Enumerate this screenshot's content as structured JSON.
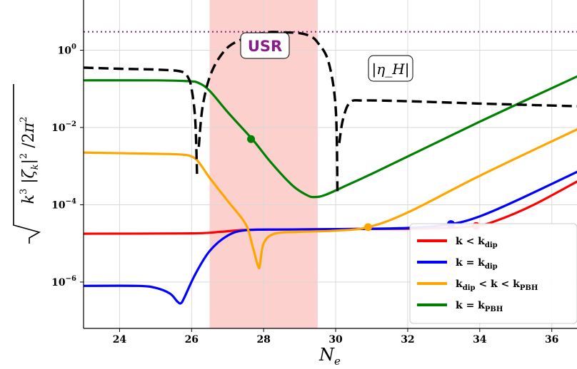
{
  "chart_data": {
    "type": "line",
    "xlabel": "N_e",
    "ylabel": "√(k³ |ζ_k|² / 2π²)",
    "xlim": [
      23.0,
      36.7
    ],
    "ylim_log10": [
      -7.2,
      1.3
    ],
    "yscale": "log",
    "grid": true,
    "x_ticks": [
      24,
      26,
      28,
      30,
      32,
      34,
      36
    ],
    "x_tick_labels": [
      "24",
      "26",
      "28",
      "30",
      "32",
      "34",
      "36"
    ],
    "y_ticks_log10": [
      0,
      -2,
      -4,
      -6
    ],
    "y_tick_labels": [
      {
        "base": "10",
        "exp": "0"
      },
      {
        "base": "10",
        "exp": "−2"
      },
      {
        "base": "10",
        "exp": "−4"
      },
      {
        "base": "10",
        "exp": "−6"
      }
    ],
    "shaded_region": {
      "label": "USR",
      "x": [
        26.5,
        29.5
      ],
      "color": "#fcd0cc",
      "label_color": "#8b1c8b"
    },
    "hline": {
      "y": 3.0,
      "color": "#8b1c8b",
      "style": "dotted"
    },
    "eta_annotation": "|η_H|",
    "eta_curve": {
      "color": "#000000",
      "style": "dashed",
      "segments": [
        {
          "x": [
            23.0,
            24.0,
            25.0,
            25.7,
            25.9,
            26.0,
            26.1,
            26.15
          ],
          "log10y": [
            -0.45,
            -0.48,
            -0.5,
            -0.55,
            -0.7,
            -1.0,
            -1.8,
            -3.2
          ]
        },
        {
          "x": [
            26.2,
            26.3,
            26.5,
            26.8,
            27.2,
            28.0,
            28.6,
            29.0,
            29.3,
            29.5,
            29.8,
            30.0,
            30.05
          ],
          "log10y": [
            -2.5,
            -1.5,
            -0.7,
            -0.15,
            0.2,
            0.45,
            0.46,
            0.44,
            0.36,
            0.2,
            -0.3,
            -1.5,
            -3.7
          ]
        },
        {
          "x": [
            30.1,
            30.2,
            30.4,
            30.8,
            32.0,
            34.0,
            36.7
          ],
          "log10y": [
            -2.4,
            -1.8,
            -1.35,
            -1.3,
            -1.32,
            -1.38,
            -1.45
          ]
        }
      ]
    },
    "series": [
      {
        "name": "k < k_dip",
        "color": "#ff0000",
        "x": [
          23.0,
          26.0,
          26.8,
          27.5,
          28.5,
          30.0,
          32.0,
          33.0,
          33.9,
          34.5,
          35.5,
          36.7
        ],
        "log10y": [
          -4.75,
          -4.74,
          -4.7,
          -4.65,
          -4.64,
          -4.63,
          -4.62,
          -4.6,
          -4.55,
          -4.4,
          -4.0,
          -3.4
        ],
        "marker": {
          "x": 33.9,
          "log10y": -4.55
        }
      },
      {
        "name": "k = k_dip",
        "color": "#0000ff",
        "x": [
          23.0,
          24.5,
          25.0,
          25.4,
          25.6,
          25.7,
          25.8,
          26.1,
          26.5,
          27.0,
          27.5,
          28.5,
          30.0,
          32.0,
          33.2,
          34.0,
          35.0,
          36.7
        ],
        "log10y": [
          -6.1,
          -6.1,
          -6.15,
          -6.3,
          -6.5,
          -6.55,
          -6.4,
          -5.8,
          -5.2,
          -4.8,
          -4.66,
          -4.64,
          -4.63,
          -4.6,
          -4.5,
          -4.3,
          -3.9,
          -3.15
        ],
        "marker": {
          "x": 33.2,
          "log10y": -4.5
        }
      },
      {
        "name": "k_dip < k < k_PBH",
        "color": "#ffa500",
        "x": [
          23.0,
          25.0,
          25.7,
          26.0,
          26.2,
          26.5,
          27.0,
          27.5,
          27.7,
          27.85,
          27.9,
          28.0,
          28.3,
          29.0,
          30.0,
          30.9,
          32.0,
          34.0,
          36.7
        ],
        "log10y": [
          -2.65,
          -2.68,
          -2.7,
          -2.75,
          -2.9,
          -3.3,
          -3.9,
          -4.5,
          -5.1,
          -5.6,
          -5.55,
          -5.0,
          -4.75,
          -4.7,
          -4.67,
          -4.58,
          -4.2,
          -3.25,
          -2.05
        ],
        "marker": {
          "x": 30.9,
          "log10y": -4.58
        }
      },
      {
        "name": "k = k_PBH",
        "color": "#008000",
        "x": [
          23.0,
          25.0,
          25.9,
          26.2,
          26.5,
          27.0,
          27.7,
          28.2,
          28.8,
          29.2,
          29.4,
          29.7,
          30.3,
          31.0,
          32.0,
          34.0,
          36.7
        ],
        "log10y": [
          -0.78,
          -0.78,
          -0.8,
          -0.85,
          -1.05,
          -1.6,
          -2.32,
          -2.9,
          -3.5,
          -3.75,
          -3.8,
          -3.75,
          -3.5,
          -3.2,
          -2.75,
          -1.85,
          -0.68
        ],
        "marker": {
          "x": 27.65,
          "log10y": -2.3
        }
      }
    ],
    "legend": {
      "position": "lower-right",
      "entries": [
        {
          "color": "#ff0000",
          "label": "k < k_dip"
        },
        {
          "color": "#0000ff",
          "label": "k = k_dip"
        },
        {
          "color": "#ffa500",
          "label": "k_dip < k < k_PBH"
        },
        {
          "color": "#008000",
          "label": "k = k_PBH"
        }
      ]
    }
  }
}
